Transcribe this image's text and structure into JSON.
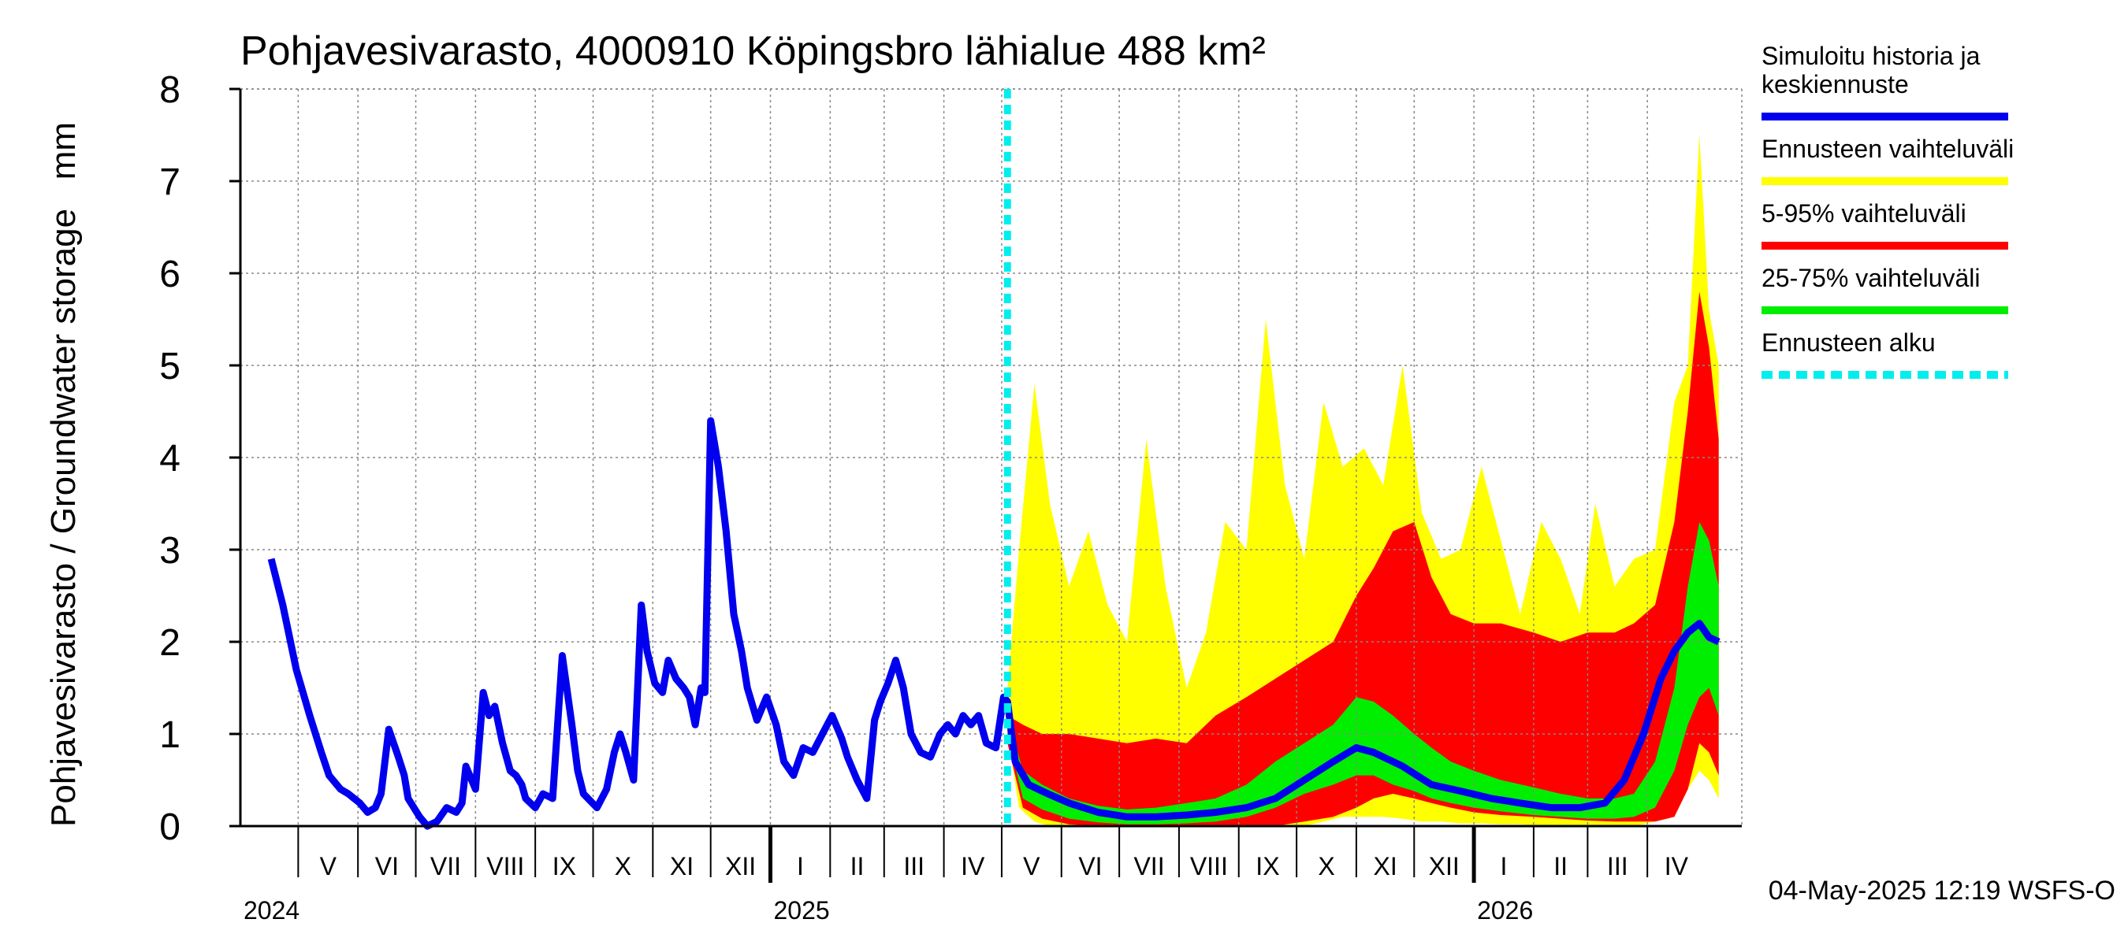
{
  "chart_data": {
    "type": "area",
    "title": "Pohjavesivarasto, 4000910 Köpingsbro lähialue 488 km²",
    "ylabel": "Pohjavesivarasto / Groundwater storage   mm",
    "ylim": [
      0,
      8
    ],
    "yticks": [
      0,
      1,
      2,
      3,
      4,
      5,
      6,
      7,
      8
    ],
    "xlim": [
      "2024-04-01",
      "2026-05-20"
    ],
    "grid": true,
    "legend_position": "right",
    "months": [
      {
        "label": "V",
        "start": "2024-05-01"
      },
      {
        "label": "VI",
        "start": "2024-06-01"
      },
      {
        "label": "VII",
        "start": "2024-07-01"
      },
      {
        "label": "VIII",
        "start": "2024-08-01"
      },
      {
        "label": "IX",
        "start": "2024-09-01"
      },
      {
        "label": "X",
        "start": "2024-10-01"
      },
      {
        "label": "XI",
        "start": "2024-11-01"
      },
      {
        "label": "XII",
        "start": "2024-12-01"
      },
      {
        "label": "I",
        "start": "2025-01-01"
      },
      {
        "label": "II",
        "start": "2025-02-01"
      },
      {
        "label": "III",
        "start": "2025-03-01"
      },
      {
        "label": "IV",
        "start": "2025-04-01"
      },
      {
        "label": "V",
        "start": "2025-05-01"
      },
      {
        "label": "VI",
        "start": "2025-06-01"
      },
      {
        "label": "VII",
        "start": "2025-07-01"
      },
      {
        "label": "VIII",
        "start": "2025-08-01"
      },
      {
        "label": "IX",
        "start": "2025-09-01"
      },
      {
        "label": "X",
        "start": "2025-10-01"
      },
      {
        "label": "XI",
        "start": "2025-11-01"
      },
      {
        "label": "XII",
        "start": "2025-12-01"
      },
      {
        "label": "I",
        "start": "2026-01-01"
      },
      {
        "label": "II",
        "start": "2026-02-01"
      },
      {
        "label": "III",
        "start": "2026-03-01"
      },
      {
        "label": "IV",
        "start": "2026-04-01"
      }
    ],
    "year_ticks": [
      {
        "label": "2024",
        "date": "2024-05-01"
      },
      {
        "label": "2025",
        "date": "2025-01-01"
      },
      {
        "label": "2026",
        "date": "2026-01-01"
      }
    ],
    "forecast_start": "2025-05-04",
    "series": [
      {
        "name": "Simuloitu historia ja keskiennuste",
        "color": "#0000ee",
        "x": [
          "2024-04-17",
          "2024-04-23",
          "2024-04-30",
          "2024-05-07",
          "2024-05-13",
          "2024-05-17",
          "2024-05-23",
          "2024-05-27",
          "2024-06-02",
          "2024-06-06",
          "2024-06-10",
          "2024-06-13",
          "2024-06-17",
          "2024-06-22",
          "2024-06-25",
          "2024-06-27",
          "2024-07-03",
          "2024-07-07",
          "2024-07-12",
          "2024-07-17",
          "2024-07-22",
          "2024-07-25",
          "2024-07-27",
          "2024-08-01",
          "2024-08-05",
          "2024-08-08",
          "2024-08-11",
          "2024-08-15",
          "2024-08-19",
          "2024-08-22",
          "2024-08-25",
          "2024-08-27",
          "2024-09-01",
          "2024-09-05",
          "2024-09-10",
          "2024-09-15",
          "2024-09-20",
          "2024-09-23",
          "2024-09-26",
          "2024-10-03",
          "2024-10-08",
          "2024-10-12",
          "2024-10-15",
          "2024-10-18",
          "2024-10-22",
          "2024-10-26",
          "2024-10-29",
          "2024-11-02",
          "2024-11-06",
          "2024-11-09",
          "2024-11-13",
          "2024-11-17",
          "2024-11-20",
          "2024-11-23",
          "2024-11-26",
          "2024-11-28",
          "2024-12-01",
          "2024-12-05",
          "2024-12-09",
          "2024-12-13",
          "2024-12-17",
          "2024-12-20",
          "2024-12-25",
          "2024-12-30",
          "2025-01-04",
          "2025-01-08",
          "2025-01-13",
          "2025-01-18",
          "2025-01-23",
          "2025-01-28",
          "2025-02-02",
          "2025-02-07",
          "2025-02-10",
          "2025-02-15",
          "2025-02-20",
          "2025-02-24",
          "2025-02-27",
          "2025-03-03",
          "2025-03-07",
          "2025-03-11",
          "2025-03-15",
          "2025-03-20",
          "2025-03-25",
          "2025-03-30",
          "2025-04-03",
          "2025-04-07",
          "2025-04-11",
          "2025-04-15",
          "2025-04-19",
          "2025-04-23",
          "2025-04-28",
          "2025-05-02",
          "2025-05-04",
          "2025-05-08",
          "2025-05-15",
          "2025-05-25",
          "2025-06-05",
          "2025-06-20",
          "2025-07-05",
          "2025-07-20",
          "2025-08-05",
          "2025-08-20",
          "2025-09-05",
          "2025-09-20",
          "2025-10-05",
          "2025-10-20",
          "2025-11-01",
          "2025-11-10",
          "2025-11-25",
          "2025-12-10",
          "2025-12-25",
          "2026-01-10",
          "2026-01-25",
          "2026-02-10",
          "2026-02-25",
          "2026-03-10",
          "2026-03-20",
          "2026-03-30",
          "2026-04-08",
          "2026-04-15",
          "2026-04-22",
          "2026-04-28",
          "2026-05-03",
          "2026-05-08"
        ],
        "values": [
          2.9,
          2.4,
          1.7,
          1.2,
          0.8,
          0.55,
          0.4,
          0.35,
          0.25,
          0.15,
          0.2,
          0.35,
          1.05,
          0.75,
          0.55,
          0.3,
          0.1,
          0.0,
          0.05,
          0.2,
          0.15,
          0.25,
          0.65,
          0.4,
          1.45,
          1.2,
          1.3,
          0.9,
          0.6,
          0.55,
          0.45,
          0.3,
          0.2,
          0.35,
          0.3,
          1.85,
          1.1,
          0.6,
          0.35,
          0.2,
          0.4,
          0.8,
          1.0,
          0.8,
          0.5,
          2.4,
          1.9,
          1.55,
          1.45,
          1.8,
          1.6,
          1.5,
          1.4,
          1.1,
          1.5,
          1.45,
          4.4,
          3.9,
          3.2,
          2.3,
          1.9,
          1.5,
          1.15,
          1.4,
          1.1,
          0.7,
          0.55,
          0.85,
          0.8,
          1.0,
          1.2,
          0.95,
          0.75,
          0.5,
          0.3,
          1.15,
          1.35,
          1.55,
          1.8,
          1.5,
          1.0,
          0.8,
          0.75,
          1.0,
          1.1,
          1.0,
          1.2,
          1.1,
          1.2,
          0.9,
          0.85,
          1.4,
          1.35,
          0.7,
          0.45,
          0.35,
          0.25,
          0.15,
          0.1,
          0.1,
          0.12,
          0.15,
          0.2,
          0.3,
          0.5,
          0.7,
          0.85,
          0.8,
          0.65,
          0.45,
          0.38,
          0.3,
          0.25,
          0.2,
          0.2,
          0.25,
          0.5,
          1.0,
          1.6,
          1.9,
          2.1,
          2.2,
          2.05,
          2.0
        ]
      },
      {
        "name": "Ennusteen vaihteluväli",
        "color": "#ffff00",
        "x": [
          "2025-05-04",
          "2025-05-10",
          "2025-05-18",
          "2025-05-26",
          "2025-06-05",
          "2025-06-15",
          "2025-06-25",
          "2025-07-05",
          "2025-07-15",
          "2025-07-25",
          "2025-08-05",
          "2025-08-15",
          "2025-08-25",
          "2025-09-05",
          "2025-09-15",
          "2025-09-25",
          "2025-10-05",
          "2025-10-15",
          "2025-10-25",
          "2025-11-05",
          "2025-11-15",
          "2025-11-25",
          "2025-12-05",
          "2025-12-15",
          "2025-12-25",
          "2026-01-05",
          "2026-01-15",
          "2026-01-25",
          "2026-02-05",
          "2026-02-15",
          "2026-02-25",
          "2026-03-05",
          "2026-03-15",
          "2026-03-25",
          "2026-04-05",
          "2026-04-15",
          "2026-04-22",
          "2026-04-28",
          "2026-05-03",
          "2026-05-08"
        ],
        "high": [
          1.5,
          3.0,
          4.8,
          3.5,
          2.6,
          3.2,
          2.4,
          2.0,
          4.2,
          2.6,
          1.5,
          2.1,
          3.3,
          3.0,
          5.5,
          3.7,
          2.9,
          4.6,
          3.9,
          4.1,
          3.7,
          5.0,
          3.4,
          2.9,
          3.0,
          3.9,
          3.1,
          2.3,
          3.3,
          2.9,
          2.3,
          3.5,
          2.6,
          2.9,
          3.0,
          4.6,
          5.0,
          7.5,
          5.6,
          5.0
        ],
        "low": [
          1.0,
          0.2,
          0.05,
          0.0,
          0.0,
          0.0,
          0.0,
          0.0,
          0.0,
          0.0,
          0.0,
          0.0,
          0.0,
          0.0,
          0.0,
          0.0,
          0.0,
          0.05,
          0.1,
          0.1,
          0.1,
          0.08,
          0.05,
          0.05,
          0.03,
          0.03,
          0.02,
          0.02,
          0.0,
          0.0,
          0.0,
          0.0,
          0.0,
          0.0,
          0.05,
          0.1,
          0.4,
          0.6,
          0.5,
          0.3
        ]
      },
      {
        "name": "5-95% vaihteluväli",
        "color": "#ff0000",
        "x": [
          "2025-05-04",
          "2025-05-12",
          "2025-05-22",
          "2025-06-05",
          "2025-06-20",
          "2025-07-05",
          "2025-07-20",
          "2025-08-05",
          "2025-08-20",
          "2025-09-05",
          "2025-09-20",
          "2025-10-05",
          "2025-10-20",
          "2025-11-01",
          "2025-11-10",
          "2025-11-20",
          "2025-12-01",
          "2025-12-10",
          "2025-12-20",
          "2026-01-01",
          "2026-01-15",
          "2026-02-01",
          "2026-02-15",
          "2026-03-01",
          "2026-03-15",
          "2026-03-25",
          "2026-04-05",
          "2026-04-15",
          "2026-04-22",
          "2026-04-28",
          "2026-05-03",
          "2026-05-08"
        ],
        "high": [
          1.2,
          1.1,
          1.0,
          1.0,
          0.95,
          0.9,
          0.95,
          0.9,
          1.2,
          1.4,
          1.6,
          1.8,
          2.0,
          2.5,
          2.8,
          3.2,
          3.3,
          2.7,
          2.3,
          2.2,
          2.2,
          2.1,
          2.0,
          2.1,
          2.1,
          2.2,
          2.4,
          3.3,
          4.5,
          5.8,
          5.2,
          4.2
        ],
        "low": [
          0.9,
          0.2,
          0.08,
          0.02,
          0.0,
          0.0,
          0.0,
          0.0,
          0.0,
          0.0,
          0.0,
          0.05,
          0.1,
          0.2,
          0.3,
          0.35,
          0.3,
          0.25,
          0.2,
          0.15,
          0.12,
          0.1,
          0.08,
          0.06,
          0.05,
          0.05,
          0.05,
          0.1,
          0.4,
          0.9,
          0.8,
          0.55
        ]
      },
      {
        "name": "25-75% vaihteluväli",
        "color": "#00ee00",
        "x": [
          "2025-05-04",
          "2025-05-12",
          "2025-05-22",
          "2025-06-05",
          "2025-06-20",
          "2025-07-05",
          "2025-07-20",
          "2025-08-05",
          "2025-08-20",
          "2025-09-05",
          "2025-09-20",
          "2025-10-05",
          "2025-10-20",
          "2025-11-01",
          "2025-11-10",
          "2025-11-20",
          "2025-12-01",
          "2025-12-10",
          "2025-12-20",
          "2026-01-01",
          "2026-01-15",
          "2026-02-01",
          "2026-02-15",
          "2026-03-01",
          "2026-03-15",
          "2026-03-25",
          "2026-04-05",
          "2026-04-15",
          "2026-04-22",
          "2026-04-28",
          "2026-05-03",
          "2026-05-08"
        ],
        "high": [
          1.2,
          0.6,
          0.45,
          0.3,
          0.22,
          0.18,
          0.2,
          0.25,
          0.3,
          0.45,
          0.7,
          0.9,
          1.1,
          1.4,
          1.35,
          1.2,
          1.0,
          0.85,
          0.7,
          0.6,
          0.5,
          0.42,
          0.35,
          0.3,
          0.3,
          0.35,
          0.7,
          1.5,
          2.6,
          3.3,
          3.1,
          2.6
        ],
        "low": [
          1.0,
          0.3,
          0.18,
          0.08,
          0.04,
          0.02,
          0.02,
          0.03,
          0.05,
          0.1,
          0.2,
          0.35,
          0.45,
          0.55,
          0.55,
          0.45,
          0.38,
          0.3,
          0.25,
          0.2,
          0.16,
          0.12,
          0.1,
          0.08,
          0.08,
          0.1,
          0.2,
          0.6,
          1.1,
          1.4,
          1.5,
          1.2
        ]
      }
    ]
  },
  "legend": {
    "items": [
      {
        "label_lines": [
          "Simuloitu historia ja",
          "keskiennuste"
        ],
        "color": "#0000ee",
        "style": "solid"
      },
      {
        "label_lines": [
          "Ennusteen vaihteluväli"
        ],
        "color": "#ffff00",
        "style": "solid"
      },
      {
        "label_lines": [
          "5-95% vaihteluväli"
        ],
        "color": "#ff0000",
        "style": "solid"
      },
      {
        "label_lines": [
          "25-75% vaihteluväli"
        ],
        "color": "#00ee00",
        "style": "solid"
      },
      {
        "label_lines": [
          "Ennusteen alku"
        ],
        "color": "#00eeee",
        "style": "dashed"
      }
    ]
  },
  "footer": {
    "timestamp": "04-May-2025 12:19 WSFS-O"
  }
}
